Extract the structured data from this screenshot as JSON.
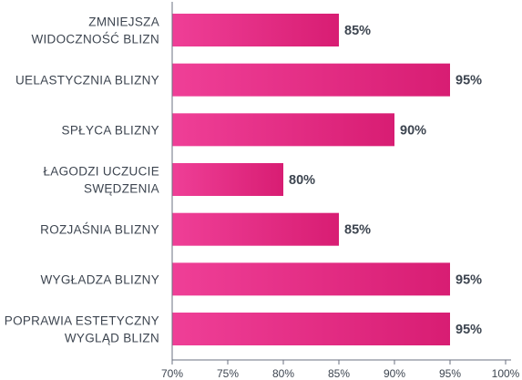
{
  "chart_data": {
    "type": "bar",
    "orientation": "horizontal",
    "categories": [
      [
        "ZMNIEJSZA",
        "WIDOCZNOŚĆ BLIZN"
      ],
      [
        "UELASTYCZNIA BLIZNY"
      ],
      [
        "SPŁYCA BLIZNY"
      ],
      [
        "ŁAGODZI UCZUCIE",
        "SWĘDZENIA"
      ],
      [
        "ROZJAŚNIA BLIZNY"
      ],
      [
        "WYGŁADZA BLIZNY"
      ],
      [
        "POPRAWIA ESTETYCZNY",
        "WYGLĄD BLIZN"
      ]
    ],
    "values": [
      85,
      95,
      90,
      80,
      85,
      95,
      95
    ],
    "value_labels": [
      "85%",
      "95%",
      "90%",
      "80%",
      "85%",
      "95%",
      "95%"
    ],
    "xlim": [
      70,
      100
    ],
    "x_ticks": [
      70,
      75,
      80,
      85,
      90,
      95,
      100
    ],
    "x_tick_labels": [
      "70%",
      "75%",
      "80%",
      "85%",
      "90%",
      "95%",
      "100%"
    ],
    "title": "",
    "xlabel": "",
    "ylabel": "",
    "grid": false,
    "colors": {
      "bar_start": "#ef3f97",
      "bar_end": "#d81d73",
      "text": "#3d4550",
      "axis": "#6b7280"
    }
  }
}
